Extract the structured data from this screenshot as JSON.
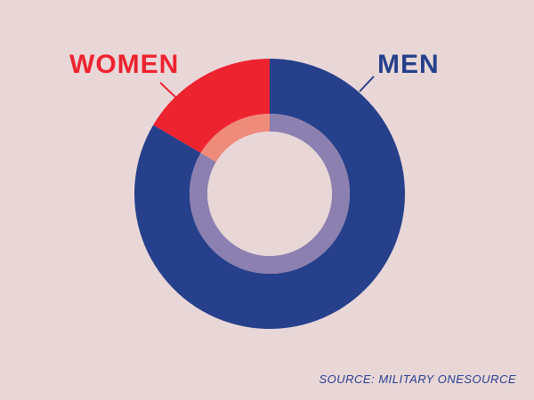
{
  "chart_data": {
    "type": "pie",
    "categories": [
      "WOMEN",
      "MEN"
    ],
    "values": [
      16.5,
      83.5
    ],
    "colors": {
      "WOMEN": "#ee2330",
      "MEN": "#26408b",
      "WOMEN_inner": "#ee8b7a",
      "MEN_inner": "#8b80b0",
      "background": "#e9d7d8"
    },
    "legend": "direct-labels"
  },
  "source": "SOURCE: MILITARY ONESOURCE"
}
